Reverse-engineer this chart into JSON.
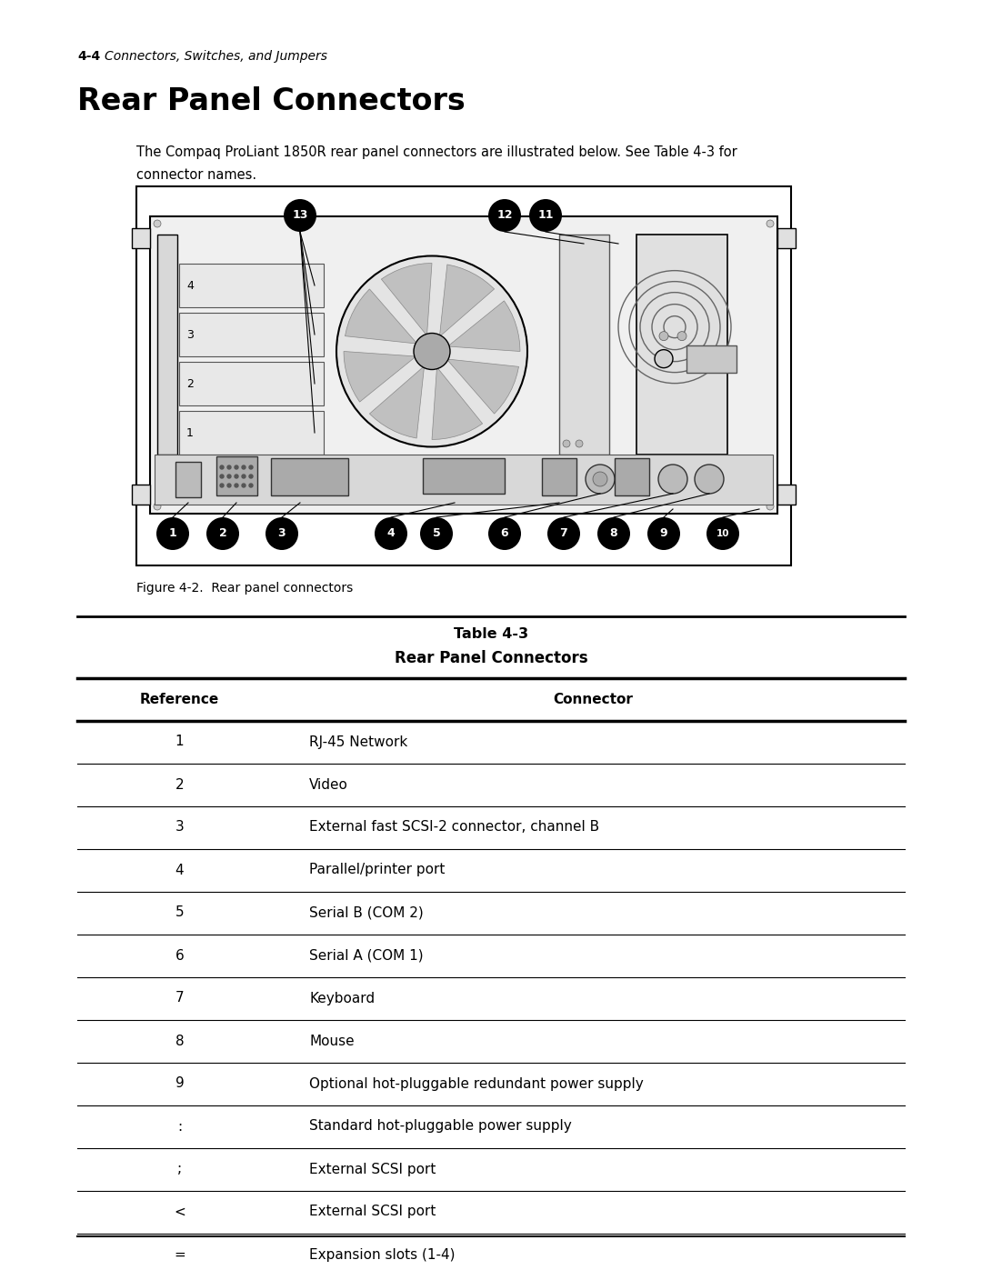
{
  "page_header_num": "4-4",
  "page_header_text": "Connectors, Switches, and Jumpers",
  "section_title": "Rear Panel Connectors",
  "body_text_line1": "The Compaq ProLiant 1850R rear panel connectors are illustrated below. See Table 4-3 for",
  "body_text_line2": "connector names.",
  "figure_caption": "Figure 4-2.  Rear panel connectors",
  "table_title_line1": "Table 4-3",
  "table_title_line2": "Rear Panel Connectors",
  "col_header_ref": "Reference",
  "col_header_con": "Connector",
  "table_rows": [
    [
      "1",
      "RJ-45 Network"
    ],
    [
      "2",
      "Video"
    ],
    [
      "3",
      "External fast SCSI-2 connector, channel B"
    ],
    [
      "4",
      "Parallel/printer port"
    ],
    [
      "5",
      "Serial B (COM 2)"
    ],
    [
      "6",
      "Serial A (COM 1)"
    ],
    [
      "7",
      "Keyboard"
    ],
    [
      "8",
      "Mouse"
    ],
    [
      "9",
      "Optional hot-pluggable redundant power supply"
    ],
    [
      ":",
      "Standard hot-pluggable power supply"
    ],
    [
      ";",
      "External SCSI port"
    ],
    [
      "<",
      "External SCSI port"
    ],
    [
      "=",
      "Expansion slots (1-4)"
    ]
  ],
  "bg_color": "#ffffff",
  "text_color": "#000000"
}
